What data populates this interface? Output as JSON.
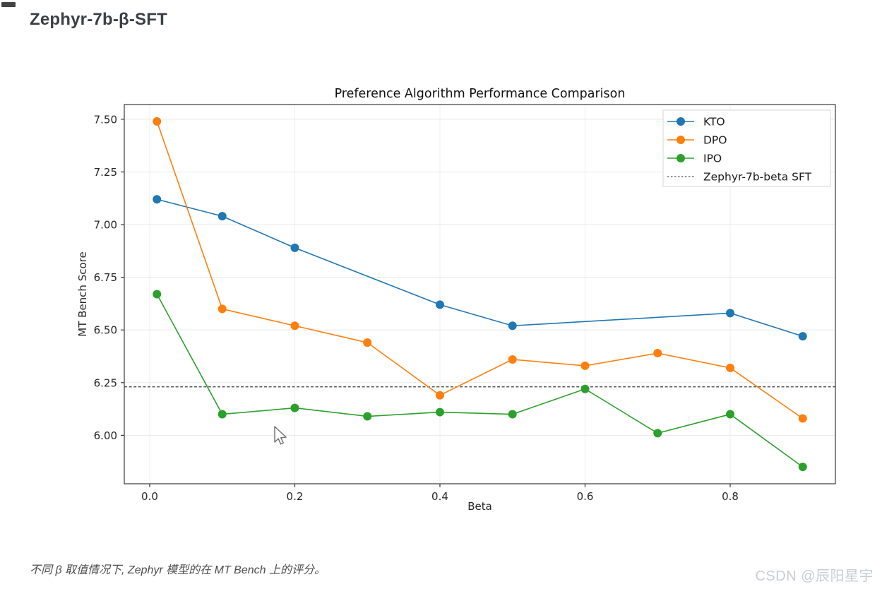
{
  "page": {
    "title": "Zephyr-7b-β-SFT",
    "caption": "不同 β 取值情况下, Zephyr 模型的在 MT Bench 上的评分。",
    "watermark": "CSDN @辰阳星宇"
  },
  "chart_data": {
    "type": "line",
    "title": "Preference Algorithm Performance Comparison",
    "xlabel": "Beta",
    "ylabel": "MT Bench Score",
    "xlim": [
      -0.035,
      0.945
    ],
    "ylim": [
      5.77,
      7.57
    ],
    "x_ticks": [
      0.0,
      0.2,
      0.4,
      0.6,
      0.8
    ],
    "y_ticks": [
      6.0,
      6.25,
      6.5,
      6.75,
      7.0,
      7.25,
      7.5
    ],
    "grid": true,
    "legend_position": "upper right",
    "series": [
      {
        "name": "KTO",
        "color": "#1f77b4",
        "x": [
          0.01,
          0.1,
          0.2,
          0.4,
          0.5,
          0.8,
          0.9
        ],
        "y": [
          7.12,
          7.04,
          6.89,
          6.62,
          6.52,
          6.58,
          6.47
        ]
      },
      {
        "name": "DPO",
        "color": "#ff7f0e",
        "x": [
          0.01,
          0.1,
          0.2,
          0.3,
          0.4,
          0.5,
          0.6,
          0.7,
          0.8,
          0.9
        ],
        "y": [
          7.49,
          6.6,
          6.52,
          6.44,
          6.19,
          6.36,
          6.33,
          6.39,
          6.32,
          6.08
        ]
      },
      {
        "name": "IPO",
        "color": "#2ca02c",
        "x": [
          0.01,
          0.1,
          0.2,
          0.3,
          0.4,
          0.5,
          0.6,
          0.7,
          0.8,
          0.9
        ],
        "y": [
          6.67,
          6.1,
          6.13,
          6.09,
          6.11,
          6.1,
          6.22,
          6.01,
          6.1,
          5.85
        ]
      }
    ],
    "baseline": {
      "label": "Zephyr-7b-beta SFT",
      "value": 6.23,
      "style": "dashed",
      "color": "#3b3b3b"
    }
  },
  "colors": {
    "kto": "#1f77b4",
    "dpo": "#ff7f0e",
    "ipo": "#2ca02c",
    "grid": "#e8e8e8",
    "spine": "#3a3a3a"
  }
}
